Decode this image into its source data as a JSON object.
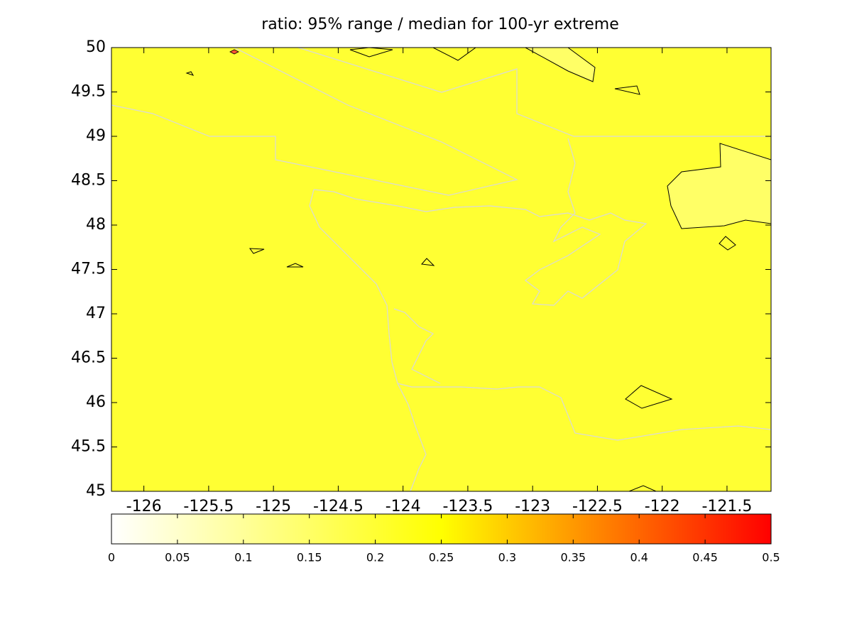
{
  "chart_data": {
    "type": "contour-map",
    "title": "ratio: 95% range / median for 100-yr extreme",
    "xlim": [
      -126.25,
      -121.16
    ],
    "ylim": [
      45,
      50
    ],
    "xticks": [
      -126,
      -125.5,
      -125,
      -124.5,
      -124,
      -123.5,
      -123,
      -122.5,
      -122,
      -121.5
    ],
    "yticks": [
      45,
      45.5,
      46,
      46.5,
      47,
      47.5,
      48,
      48.5,
      49,
      49.5,
      50
    ],
    "colorbar": {
      "clim": [
        0,
        0.5
      ],
      "ticks": [
        0,
        0.05,
        0.1,
        0.15,
        0.2,
        0.25,
        0.3,
        0.35,
        0.4,
        0.45,
        0.5
      ],
      "colors": [
        "#ffffff",
        "#ffff00",
        "#ff0000"
      ]
    },
    "field_color": "#ffff33"
  }
}
